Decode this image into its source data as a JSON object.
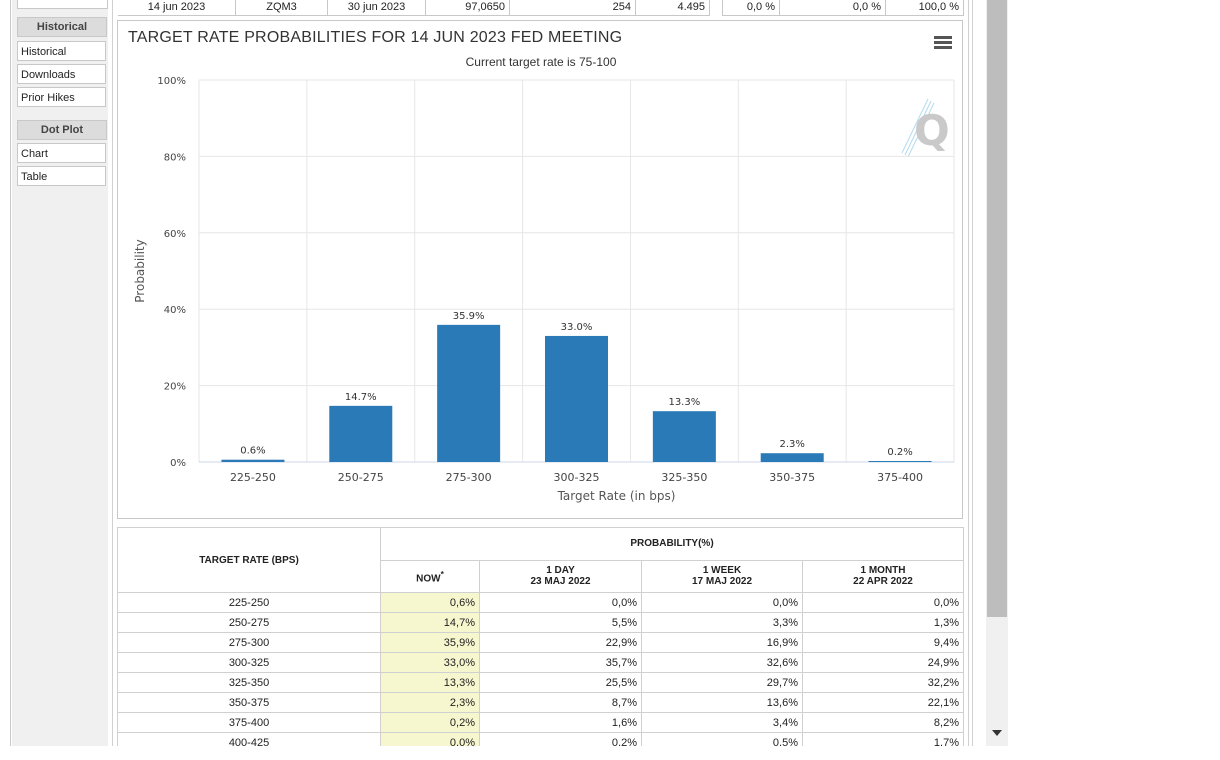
{
  "top_row": [
    "14 jun 2023",
    "ZQM3",
    "30 jun 2023",
    "97,0650",
    "254",
    "4.495",
    "0,0 %",
    "0,0 %",
    "100,0 %"
  ],
  "sidebar": {
    "historical_header": "Historical",
    "historical_items": [
      "Historical",
      "Downloads",
      "Prior Hikes"
    ],
    "dotplot_header": "Dot Plot",
    "dotplot_items": [
      "Chart",
      "Table"
    ]
  },
  "chart": {
    "title": "TARGET RATE PROBABILITIES FOR 14 JUN 2023 FED MEETING",
    "subtitle": "Current target rate is 75-100",
    "menu_icon": "hamburger-menu-icon",
    "logo_icon": "quikstrike-q-logo",
    "bar_color": "#2a7ab7"
  },
  "chart_data": {
    "type": "bar",
    "categories": [
      "225-250",
      "250-275",
      "275-300",
      "300-325",
      "325-350",
      "350-375",
      "375-400"
    ],
    "values": [
      0.6,
      14.7,
      35.9,
      33.0,
      13.3,
      2.3,
      0.2
    ],
    "data_labels": [
      "0.6%",
      "14.7%",
      "35.9%",
      "33.0%",
      "13.3%",
      "2.3%",
      "0.2%"
    ],
    "ylim": [
      0,
      100
    ],
    "yticks": [
      "0%",
      "20%",
      "40%",
      "60%",
      "80%",
      "100%"
    ],
    "xlabel": "Target Rate (in bps)",
    "ylabel": "Probability",
    "grid": true
  },
  "table": {
    "header_rate": "TARGET RATE (BPS)",
    "header_prob": "PROBABILITY(%)",
    "col_now": "NOW",
    "col_now_mark": "*",
    "col_1day": "1 DAY",
    "col_1day_date": "23 MAJ 2022",
    "col_1week": "1 WEEK",
    "col_1week_date": "17 MAJ 2022",
    "col_1month": "1 MONTH",
    "col_1month_date": "22 APR 2022",
    "rows": [
      [
        "225-250",
        "0,6%",
        "0,0%",
        "0,0%",
        "0,0%"
      ],
      [
        "250-275",
        "14,7%",
        "5,5%",
        "3,3%",
        "1,3%"
      ],
      [
        "275-300",
        "35,9%",
        "22,9%",
        "16,9%",
        "9,4%"
      ],
      [
        "300-325",
        "33,0%",
        "35,7%",
        "32,6%",
        "24,9%"
      ],
      [
        "325-350",
        "13,3%",
        "25,5%",
        "29,7%",
        "32,2%"
      ],
      [
        "350-375",
        "2,3%",
        "8,7%",
        "13,6%",
        "22,1%"
      ],
      [
        "375-400",
        "0,2%",
        "1,6%",
        "3,4%",
        "8,2%"
      ],
      [
        "400-425",
        "0,0%",
        "0,2%",
        "0,5%",
        "1,7%"
      ]
    ]
  }
}
